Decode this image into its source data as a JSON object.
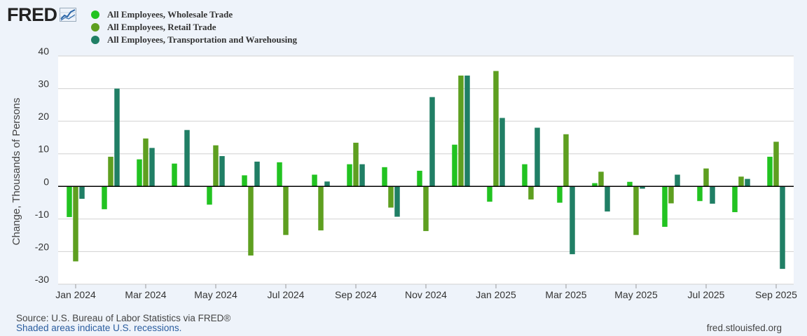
{
  "header": {
    "logo_text": "FRED",
    "legend": [
      {
        "label": "All Employees, Wholesale Trade",
        "color": "#22c321"
      },
      {
        "label": "All Employees, Retail Trade",
        "color": "#5e9f20"
      },
      {
        "label": "All Employees, Transportation and Warehousing",
        "color": "#207f65"
      }
    ]
  },
  "chart_data": {
    "type": "bar",
    "ylabel": "Change, Thousands of Persons",
    "ylim": [
      -30,
      40
    ],
    "yticks": [
      40,
      30,
      20,
      10,
      0,
      -10,
      -20,
      -30
    ],
    "grid": true,
    "categories": [
      "Jan 2024",
      "Feb 2024",
      "Mar 2024",
      "Apr 2024",
      "May 2024",
      "Jun 2024",
      "Jul 2024",
      "Aug 2024",
      "Sep 2024",
      "Oct 2024",
      "Nov 2024",
      "Dec 2024",
      "Jan 2025",
      "Feb 2025",
      "Mar 2025",
      "Apr 2025",
      "May 2025",
      "Jun 2025",
      "Jul 2025",
      "Aug 2025",
      "Sep 2025"
    ],
    "xtick_labels": [
      "Jan 2024",
      "Mar 2024",
      "May 2024",
      "Jul 2024",
      "Sep 2024",
      "Nov 2024",
      "Jan 2025",
      "Mar 2025",
      "May 2025",
      "Jul 2025",
      "Sep 2025"
    ],
    "series": [
      {
        "name": "All Employees, Wholesale Trade",
        "color": "#22c321",
        "values": [
          -9.4,
          -7.0,
          8.3,
          7.0,
          -5.6,
          3.4,
          7.4,
          3.6,
          6.8,
          5.9,
          4.8,
          12.8,
          -4.7,
          6.8,
          -5.0,
          1.0,
          1.4,
          -12.4,
          -4.5,
          -7.9,
          9.1
        ]
      },
      {
        "name": "All Employees, Retail Trade",
        "color": "#5e9f20",
        "values": [
          -23.0,
          9.1,
          14.7,
          null,
          12.6,
          -21.2,
          -14.9,
          -13.5,
          13.4,
          -6.5,
          -13.7,
          34.0,
          35.4,
          -4.0,
          16.0,
          4.5,
          -14.9,
          -5.2,
          5.5,
          3.0,
          13.7
        ]
      },
      {
        "name": "All Employees, Transportation and Warehousing",
        "color": "#207f65",
        "values": [
          -3.8,
          30.0,
          11.8,
          17.3,
          9.3,
          7.6,
          null,
          1.5,
          6.8,
          -9.3,
          27.4,
          34.0,
          21.0,
          18.0,
          -20.8,
          -7.7,
          -0.7,
          3.6,
          -5.3,
          2.3,
          -25.3
        ]
      }
    ]
  },
  "footer": {
    "source": "Source: U.S. Bureau of Labor Statistics via FRED®",
    "note": "Shaded areas indicate U.S. recessions.",
    "site": "fred.stlouisfed.org"
  }
}
